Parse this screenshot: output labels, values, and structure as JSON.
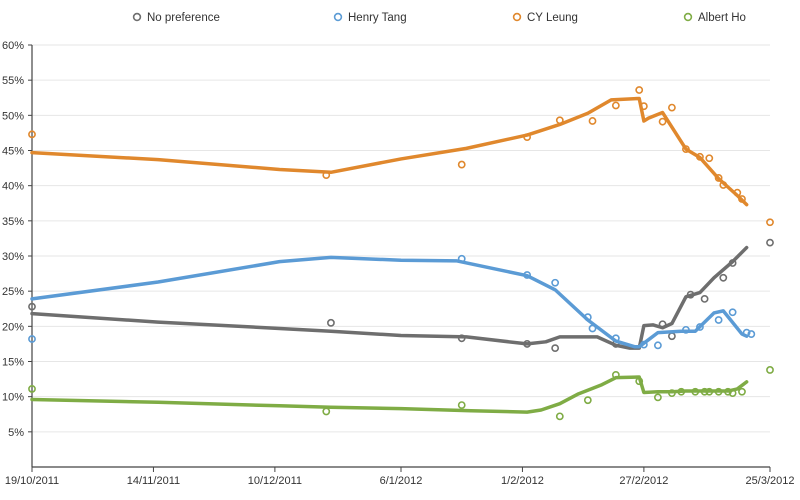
{
  "chart_data": {
    "type": "line",
    "title": "",
    "legend_position": "top",
    "grid": true,
    "x_axis": {
      "type": "date",
      "tick_labels": [
        "19/10/2011",
        "14/11/2011",
        "10/12/2011",
        "6/1/2012",
        "1/2/2012",
        "27/2/2012",
        "25/3/2012"
      ],
      "tick_days": [
        0,
        26,
        52,
        79,
        105,
        131,
        158
      ],
      "range_days": [
        0,
        158
      ]
    },
    "y_axis": {
      "unit": "%",
      "min": 0,
      "max": 60,
      "gridline_start": 5,
      "step": 5,
      "tick_labels": [
        "5%",
        "10%",
        "15%",
        "20%",
        "25%",
        "30%",
        "35%",
        "40%",
        "45%",
        "50%",
        "55%",
        "60%"
      ]
    },
    "colors": {
      "no_preference": "#6e6e6e",
      "henry_tang": "#5b9bd5",
      "cy_leung": "#e0882d",
      "albert_ho": "#7fac45",
      "gridline": "#e6e6e6",
      "axis": "#444444",
      "label_text": "#333333"
    },
    "series": [
      {
        "name": "No preference",
        "color": "#6e6e6e",
        "trend": [
          [
            0,
            21.8
          ],
          [
            27,
            20.6
          ],
          [
            53,
            19.7
          ],
          [
            64,
            19.3
          ],
          [
            79,
            18.7
          ],
          [
            93,
            18.5
          ],
          [
            106,
            17.5
          ],
          [
            110,
            17.8
          ],
          [
            113,
            18.5
          ],
          [
            121,
            18.5
          ],
          [
            125,
            17.3
          ],
          [
            128,
            16.9
          ],
          [
            130,
            16.9
          ],
          [
            131,
            20.1
          ],
          [
            133,
            20.2
          ],
          [
            135,
            19.8
          ],
          [
            137,
            20.4
          ],
          [
            140,
            24.2
          ],
          [
            143,
            24.8
          ],
          [
            146,
            26.9
          ],
          [
            150,
            29.2
          ],
          [
            153,
            31.2
          ]
        ],
        "points": [
          [
            0,
            22.8
          ],
          [
            64,
            20.5
          ],
          [
            92,
            18.3
          ],
          [
            106,
            17.5
          ],
          [
            112,
            16.9
          ],
          [
            125,
            17.5
          ],
          [
            135,
            20.3
          ],
          [
            137,
            18.6
          ],
          [
            141,
            24.5
          ],
          [
            144,
            23.9
          ],
          [
            148,
            26.9
          ],
          [
            150,
            29.0
          ],
          [
            158,
            31.9
          ]
        ]
      },
      {
        "name": "Henry Tang",
        "color": "#5b9bd5",
        "trend": [
          [
            0,
            23.9
          ],
          [
            27,
            26.3
          ],
          [
            53,
            29.2
          ],
          [
            64,
            29.8
          ],
          [
            79,
            29.4
          ],
          [
            91,
            29.3
          ],
          [
            106,
            27.2
          ],
          [
            112,
            25.2
          ],
          [
            119,
            20.9
          ],
          [
            125,
            17.9
          ],
          [
            129,
            17.1
          ],
          [
            130,
            17.1
          ],
          [
            132,
            18.1
          ],
          [
            134,
            19.1
          ],
          [
            139,
            19.3
          ],
          [
            142,
            19.3
          ],
          [
            146,
            21.9
          ],
          [
            148,
            22.2
          ],
          [
            152,
            18.9
          ],
          [
            153,
            18.6
          ]
        ],
        "points": [
          [
            0,
            18.2
          ],
          [
            92,
            29.6
          ],
          [
            106,
            27.3
          ],
          [
            112,
            26.2
          ],
          [
            119,
            21.3
          ],
          [
            120,
            19.7
          ],
          [
            125,
            18.3
          ],
          [
            131,
            17.4
          ],
          [
            134,
            17.3
          ],
          [
            140,
            19.5
          ],
          [
            143,
            19.9
          ],
          [
            147,
            20.9
          ],
          [
            150,
            22.0
          ],
          [
            153,
            19.1
          ],
          [
            154,
            18.9
          ]
        ]
      },
      {
        "name": "CY Leung",
        "color": "#e0882d",
        "trend": [
          [
            0,
            44.7
          ],
          [
            27,
            43.7
          ],
          [
            53,
            42.3
          ],
          [
            64,
            41.9
          ],
          [
            79,
            43.8
          ],
          [
            93,
            45.3
          ],
          [
            106,
            47.2
          ],
          [
            113,
            48.7
          ],
          [
            119,
            50.3
          ],
          [
            124,
            52.2
          ],
          [
            130,
            52.4
          ],
          [
            131,
            49.2
          ],
          [
            132,
            49.6
          ],
          [
            135,
            50.4
          ],
          [
            140,
            45.2
          ],
          [
            143,
            44.0
          ],
          [
            147,
            41.0
          ],
          [
            151,
            38.6
          ],
          [
            153,
            37.3
          ]
        ],
        "points": [
          [
            0,
            47.3
          ],
          [
            63,
            41.5
          ],
          [
            92,
            43.0
          ],
          [
            106,
            46.9
          ],
          [
            113,
            49.3
          ],
          [
            120,
            49.2
          ],
          [
            125,
            51.4
          ],
          [
            130,
            53.6
          ],
          [
            131,
            51.3
          ],
          [
            135,
            49.1
          ],
          [
            137,
            51.1
          ],
          [
            140,
            45.2
          ],
          [
            143,
            44.1
          ],
          [
            145,
            43.9
          ],
          [
            147,
            41.1
          ],
          [
            148,
            40.1
          ],
          [
            151,
            39.0
          ],
          [
            152,
            38.1
          ],
          [
            158,
            34.8
          ]
        ]
      },
      {
        "name": "Albert Ho",
        "color": "#7fac45",
        "trend": [
          [
            0,
            9.6
          ],
          [
            27,
            9.2
          ],
          [
            53,
            8.7
          ],
          [
            64,
            8.5
          ],
          [
            79,
            8.3
          ],
          [
            94,
            8.0
          ],
          [
            106,
            7.8
          ],
          [
            109,
            8.1
          ],
          [
            113,
            9.0
          ],
          [
            117,
            10.4
          ],
          [
            122,
            11.7
          ],
          [
            125,
            12.7
          ],
          [
            130,
            12.8
          ],
          [
            131,
            10.6
          ],
          [
            134,
            10.7
          ],
          [
            137,
            10.7
          ],
          [
            140,
            10.8
          ],
          [
            143,
            10.8
          ],
          [
            146,
            10.8
          ],
          [
            149,
            10.8
          ],
          [
            151,
            11.1
          ],
          [
            153,
            12.1
          ]
        ],
        "points": [
          [
            0,
            11.1
          ],
          [
            63,
            7.9
          ],
          [
            92,
            8.8
          ],
          [
            113,
            7.2
          ],
          [
            119,
            9.5
          ],
          [
            125,
            13.1
          ],
          [
            130,
            12.2
          ],
          [
            134,
            9.9
          ],
          [
            137,
            10.5
          ],
          [
            139,
            10.7
          ],
          [
            142,
            10.7
          ],
          [
            144,
            10.7
          ],
          [
            145,
            10.7
          ],
          [
            147,
            10.7
          ],
          [
            149,
            10.7
          ],
          [
            150,
            10.5
          ],
          [
            152,
            10.7
          ],
          [
            158,
            13.8
          ]
        ]
      }
    ]
  }
}
